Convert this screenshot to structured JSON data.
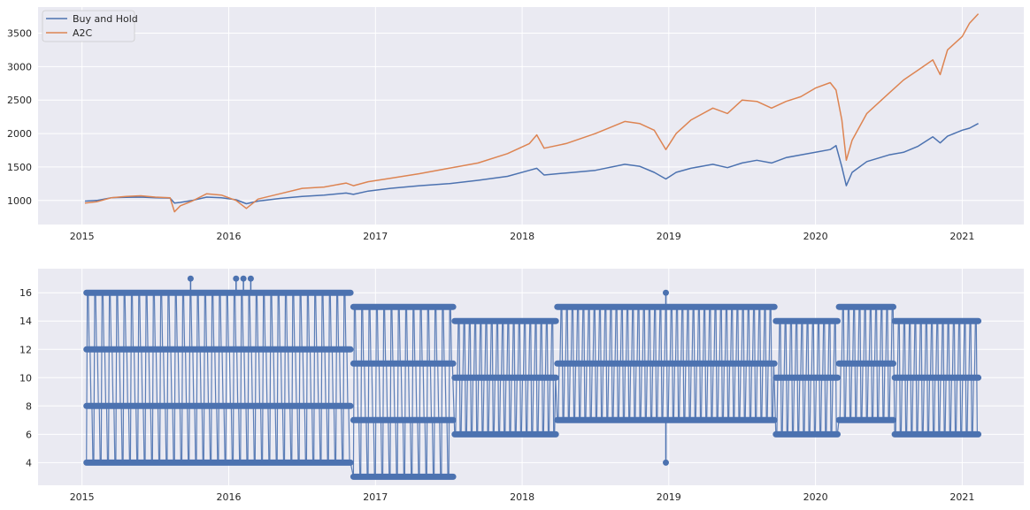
{
  "chart_data": [
    {
      "type": "line",
      "title": "",
      "xlabel": "",
      "ylabel": "",
      "grid": true,
      "legend_position": "top-left",
      "xlim": [
        2014.7,
        2021.42
      ],
      "ylim": [
        640,
        3890
      ],
      "x_ticks": [
        "2015",
        "2016",
        "2017",
        "2018",
        "2019",
        "2020",
        "2021"
      ],
      "y_ticks": [
        "1000",
        "1500",
        "2000",
        "2500",
        "3000",
        "3500"
      ],
      "series": [
        {
          "name": "Buy and Hold",
          "color": "#4c72b0",
          "x": [
            2015.02,
            2015.1,
            2015.2,
            2015.3,
            2015.4,
            2015.5,
            2015.6,
            2015.63,
            2015.67,
            2015.75,
            2015.85,
            2015.95,
            2016.05,
            2016.12,
            2016.2,
            2016.35,
            2016.5,
            2016.65,
            2016.8,
            2016.85,
            2016.95,
            2017.1,
            2017.3,
            2017.5,
            2017.7,
            2017.9,
            2018.05,
            2018.1,
            2018.15,
            2018.3,
            2018.5,
            2018.7,
            2018.8,
            2018.9,
            2018.98,
            2019.05,
            2019.15,
            2019.3,
            2019.4,
            2019.5,
            2019.6,
            2019.7,
            2019.8,
            2019.9,
            2020.0,
            2020.1,
            2020.14,
            2020.18,
            2020.21,
            2020.25,
            2020.35,
            2020.5,
            2020.6,
            2020.7,
            2020.8,
            2020.85,
            2020.9,
            2021.0,
            2021.05,
            2021.11
          ],
          "y": [
            990,
            1000,
            1040,
            1045,
            1050,
            1040,
            1035,
            960,
            970,
            1000,
            1050,
            1040,
            1010,
            950,
            990,
            1030,
            1060,
            1080,
            1110,
            1090,
            1140,
            1180,
            1220,
            1250,
            1300,
            1360,
            1450,
            1480,
            1380,
            1410,
            1450,
            1540,
            1510,
            1420,
            1320,
            1420,
            1480,
            1540,
            1490,
            1560,
            1600,
            1560,
            1640,
            1680,
            1720,
            1760,
            1820,
            1500,
            1220,
            1420,
            1580,
            1680,
            1720,
            1810,
            1950,
            1860,
            1960,
            2050,
            2080,
            2150
          ]
        },
        {
          "name": "A2C",
          "color": "#dd8452",
          "x": [
            2015.02,
            2015.1,
            2015.2,
            2015.3,
            2015.4,
            2015.5,
            2015.6,
            2015.63,
            2015.67,
            2015.75,
            2015.85,
            2015.95,
            2016.05,
            2016.12,
            2016.2,
            2016.35,
            2016.5,
            2016.65,
            2016.8,
            2016.85,
            2016.95,
            2017.1,
            2017.3,
            2017.5,
            2017.7,
            2017.9,
            2018.05,
            2018.1,
            2018.15,
            2018.3,
            2018.5,
            2018.7,
            2018.8,
            2018.9,
            2018.98,
            2019.05,
            2019.15,
            2019.3,
            2019.4,
            2019.5,
            2019.6,
            2019.7,
            2019.8,
            2019.9,
            2020.0,
            2020.1,
            2020.14,
            2020.18,
            2020.21,
            2020.25,
            2020.35,
            2020.5,
            2020.6,
            2020.7,
            2020.8,
            2020.85,
            2020.9,
            2021.0,
            2021.05,
            2021.11
          ],
          "y": [
            960,
            980,
            1040,
            1060,
            1070,
            1050,
            1040,
            830,
            920,
            990,
            1100,
            1080,
            1000,
            880,
            1020,
            1100,
            1180,
            1200,
            1260,
            1220,
            1280,
            1330,
            1400,
            1480,
            1560,
            1700,
            1850,
            1980,
            1780,
            1850,
            2000,
            2180,
            2150,
            2050,
            1760,
            2000,
            2200,
            2380,
            2300,
            2500,
            2480,
            2380,
            2480,
            2550,
            2680,
            2760,
            2650,
            2200,
            1600,
            1900,
            2300,
            2600,
            2800,
            2950,
            3100,
            2880,
            3250,
            3450,
            3650,
            3790
          ]
        }
      ]
    },
    {
      "type": "line",
      "title": "",
      "xlabel": "",
      "ylabel": "",
      "grid": true,
      "markers": true,
      "xlim": [
        2014.7,
        2021.42
      ],
      "ylim": [
        2.4,
        17.7
      ],
      "x_ticks": [
        "2015",
        "2016",
        "2017",
        "2018",
        "2019",
        "2020",
        "2021"
      ],
      "y_ticks": [
        "4",
        "6",
        "8",
        "10",
        "12",
        "14",
        "16"
      ],
      "series": [
        {
          "color": "#4c72b0",
          "segments": [
            {
              "start": 2015.03,
              "end": 2016.83,
              "levels": [
                4,
                8,
                12,
                16
              ]
            },
            {
              "start": 2016.85,
              "end": 2017.53,
              "levels": [
                3,
                7,
                11,
                15
              ]
            },
            {
              "start": 2017.54,
              "end": 2018.23,
              "levels": [
                6,
                10,
                14
              ]
            },
            {
              "start": 2018.24,
              "end": 2019.72,
              "levels": [
                7,
                11,
                15
              ]
            },
            {
              "start": 2019.73,
              "end": 2020.15,
              "levels": [
                6,
                10,
                14
              ]
            },
            {
              "start": 2020.16,
              "end": 2020.53,
              "levels": [
                7,
                11,
                15
              ]
            },
            {
              "start": 2020.54,
              "end": 2021.11,
              "levels": [
                6,
                10,
                14
              ]
            }
          ],
          "spikes": [
            {
              "x": 2015.74,
              "from": 16,
              "to": 17
            },
            {
              "x": 2016.05,
              "from": 16,
              "to": 17
            },
            {
              "x": 2016.1,
              "from": 16,
              "to": 17
            },
            {
              "x": 2016.15,
              "from": 16,
              "to": 17
            },
            {
              "x": 2018.98,
              "from": 15,
              "to": 16
            },
            {
              "x": 2018.98,
              "from": 7,
              "to": 4
            }
          ]
        }
      ]
    }
  ]
}
